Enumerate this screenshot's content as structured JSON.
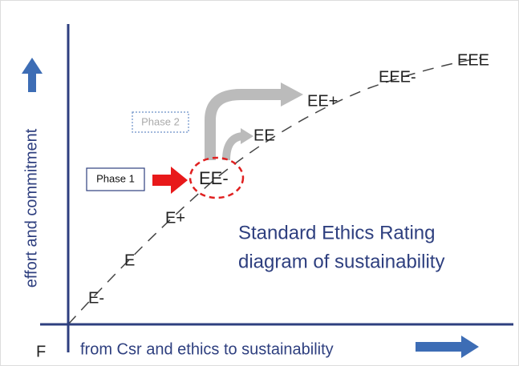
{
  "axes": {
    "y_label": "effort and commitment",
    "x_label": "from Csr and ethics to sustainability",
    "origin": "F"
  },
  "ratings": [
    "E-",
    "E",
    "E+",
    "EE-",
    "EE",
    "EE+",
    "EEE-",
    "EEE"
  ],
  "phases": [
    "Phase 1",
    "Phase 2"
  ],
  "title": [
    "Standard Ethics Rating",
    "diagram of sustainability"
  ]
}
